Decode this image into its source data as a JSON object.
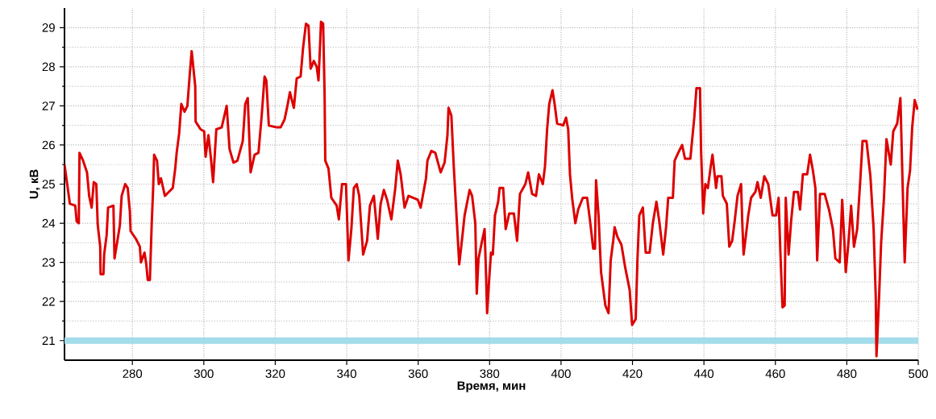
{
  "chart_data": {
    "type": "line",
    "xlabel": "Время, мин",
    "ylabel": "U, кВ",
    "xlim": [
      261,
      500
    ],
    "ylim": [
      20.5,
      29.5
    ],
    "xticks": [
      280,
      300,
      320,
      340,
      360,
      380,
      400,
      420,
      440,
      460,
      480,
      500
    ],
    "yticks": [
      21,
      {
        "value": 21.5,
        "label": null
      },
      22,
      {
        "value": 22.5,
        "label": null
      },
      23,
      {
        "value": 23.5,
        "label": null
      },
      24,
      {
        "value": 24.5,
        "label": null
      },
      25,
      {
        "value": 25.5,
        "label": null
      },
      26,
      {
        "value": 26.5,
        "label": null
      },
      27,
      {
        "value": 27.5,
        "label": null
      },
      28,
      {
        "value": 28.5,
        "label": null
      },
      29
    ],
    "grid": true,
    "marker": "none",
    "line_style": "solid",
    "ref_lines": [
      {
        "axis": "y",
        "value": 21,
        "color": "#a3dcea"
      }
    ],
    "series": [
      {
        "color": "#dd0000",
        "x": [
          261,
          262.5,
          264,
          264.4,
          265,
          265.2,
          266.2,
          267.3,
          267.9,
          268.6,
          269.2,
          269.9,
          270.3,
          271,
          271.1,
          271.9,
          272.1,
          272.8,
          273.2,
          274.7,
          275,
          275.8,
          276.5,
          277,
          278,
          278.7,
          279.3,
          279.5,
          281,
          282.1,
          282.4,
          283.4,
          283.9,
          284.3,
          284.9,
          285.4,
          285.8,
          286.1,
          286.9,
          287.4,
          288,
          289.1,
          290.2,
          291.3,
          292,
          292.4,
          293.1,
          293.7,
          294.6,
          295.4,
          296.1,
          296.6,
          297.6,
          297.7,
          299.1,
          300.1,
          300.5,
          301.3,
          302,
          302.6,
          303.5,
          305,
          306.4,
          307.2,
          308.3,
          309.4,
          310.9,
          311.6,
          312.3,
          313.1,
          314.2,
          315.3,
          316.2,
          317,
          317.5,
          318.2,
          320.4,
          321.5,
          322.6,
          323.4,
          324.1,
          325.2,
          326,
          327.1,
          327.8,
          328.6,
          329.3,
          329.9,
          330.8,
          331.6,
          332.1,
          332.5,
          332.8,
          333.4,
          333.8,
          334,
          334.9,
          335.7,
          337.2,
          337.8,
          338.7,
          339.8,
          340.5,
          341.3,
          342,
          342.8,
          343.5,
          344.6,
          345.7,
          346.5,
          347.6,
          348.7,
          349.5,
          350.4,
          351.3,
          352.5,
          353.6,
          354.3,
          355.1,
          356.2,
          357.3,
          359.9,
          360.7,
          362.2,
          362.6,
          363.7,
          364.8,
          366.3,
          367.4,
          368.2,
          368.5,
          369.3,
          370,
          370.8,
          371.5,
          372.3,
          373,
          374.4,
          375.1,
          376,
          376.4,
          376.9,
          377.9,
          378.6,
          379,
          379.3,
          379.9,
          380.4,
          380.9,
          381.5,
          382.4,
          382.8,
          383.8,
          384.5,
          385.5,
          386.8,
          387.7,
          388.5,
          390,
          390.8,
          391.9,
          393,
          393.8,
          394.9,
          395.5,
          396.1,
          396.7,
          397.6,
          398.2,
          398.9,
          400.6,
          401.4,
          402,
          402.5,
          403.1,
          404,
          404.8,
          406.1,
          407.3,
          408.2,
          409,
          409.5,
          409.8,
          410.5,
          411.2,
          412.4,
          413.3,
          413.9,
          414.6,
          415,
          415.8,
          416.9,
          418,
          419.2,
          419.9,
          420.9,
          421.4,
          421.9,
          422.9,
          423.7,
          424.8,
          425.7,
          426.7,
          427.5,
          428.6,
          429.4,
          430,
          431.3,
          431.8,
          432.8,
          433.9,
          434.7,
          436.2,
          437.3,
          437.9,
          438.9,
          439.2,
          439.8,
          440.4,
          441.1,
          441.9,
          442.4,
          443.4,
          443.8,
          444.9,
          445.3,
          446.4,
          447.1,
          447.9,
          448.6,
          449.4,
          450.4,
          450.7,
          451.1,
          451.7,
          452.4,
          453.2,
          454.4,
          455,
          455.9,
          456.9,
          458,
          459.2,
          460.2,
          460.9,
          461.4,
          462,
          462.6,
          462.9,
          463.7,
          464.4,
          465.2,
          466.3,
          466.9,
          467.7,
          468.9,
          469.7,
          470.5,
          471.2,
          471.7,
          472.5,
          473.8,
          475,
          476.1,
          476.8,
          478,
          478.7,
          479.3,
          479.7,
          480.5,
          481.2,
          482,
          482.9,
          483.8,
          484.4,
          485.5,
          486.6,
          487.5,
          488.1,
          488.3,
          489,
          489.6,
          490.4,
          491.1,
          492.3,
          493,
          494.1,
          495,
          495.6,
          496.2,
          497,
          497.7,
          498.3,
          499,
          499.8
        ],
        "values": [
          25.5,
          24.5,
          24.45,
          24.05,
          24.0,
          25.8,
          25.6,
          25.3,
          24.7,
          24.4,
          25.05,
          25.0,
          23.96,
          23.4,
          22.7,
          22.7,
          23.2,
          23.7,
          24.4,
          24.45,
          23.1,
          23.55,
          23.95,
          24.7,
          25.0,
          24.9,
          24.3,
          23.8,
          23.6,
          23.4,
          23.0,
          23.25,
          22.95,
          22.55,
          22.55,
          23.95,
          24.85,
          25.75,
          25.6,
          25.0,
          25.15,
          24.7,
          24.8,
          24.9,
          25.4,
          25.8,
          26.3,
          27.05,
          26.85,
          27.0,
          27.85,
          28.4,
          27.5,
          26.6,
          26.4,
          26.35,
          25.7,
          26.25,
          25.65,
          25.05,
          26.4,
          26.45,
          27.0,
          25.9,
          25.55,
          25.6,
          26.1,
          27.05,
          27.2,
          25.3,
          25.75,
          25.8,
          26.75,
          27.75,
          27.65,
          26.5,
          26.45,
          26.45,
          26.65,
          27.0,
          27.35,
          26.95,
          27.7,
          27.75,
          28.5,
          29.1,
          29.05,
          27.95,
          28.15,
          28.0,
          27.65,
          28.45,
          29.15,
          29.1,
          27.35,
          25.6,
          25.4,
          24.65,
          24.45,
          24.1,
          25.0,
          25.0,
          23.05,
          23.85,
          24.9,
          25.0,
          24.7,
          23.2,
          23.55,
          24.45,
          24.7,
          23.6,
          24.5,
          24.85,
          24.6,
          24.1,
          24.9,
          25.6,
          25.25,
          24.4,
          24.7,
          24.6,
          24.4,
          25.15,
          25.6,
          25.85,
          25.8,
          25.3,
          25.55,
          26.25,
          26.95,
          26.75,
          25.4,
          24.1,
          22.95,
          23.6,
          24.2,
          24.85,
          24.7,
          24.0,
          22.2,
          23.1,
          23.55,
          23.85,
          22.7,
          21.7,
          22.6,
          23.25,
          23.2,
          24.2,
          24.55,
          24.9,
          24.9,
          23.85,
          24.25,
          24.25,
          23.55,
          24.75,
          25.0,
          25.3,
          24.75,
          24.7,
          25.25,
          25.0,
          25.45,
          26.4,
          27.05,
          27.4,
          27.05,
          26.55,
          26.5,
          26.7,
          26.4,
          25.25,
          24.65,
          24.0,
          24.35,
          24.65,
          24.65,
          24.0,
          23.35,
          23.35,
          25.1,
          24.2,
          22.75,
          21.9,
          21.7,
          23.05,
          23.55,
          23.9,
          23.65,
          23.45,
          22.85,
          22.3,
          21.4,
          21.55,
          23.1,
          24.2,
          24.4,
          23.25,
          23.25,
          24.0,
          24.55,
          24.05,
          23.2,
          23.9,
          24.65,
          24.65,
          25.6,
          25.8,
          26.0,
          25.65,
          25.65,
          26.7,
          27.45,
          27.45,
          25.85,
          24.25,
          25.0,
          24.9,
          25.45,
          25.75,
          24.9,
          25.2,
          25.2,
          24.7,
          24.5,
          23.4,
          23.55,
          24.05,
          24.7,
          25.0,
          24.1,
          23.2,
          23.65,
          24.2,
          24.65,
          24.8,
          25.05,
          24.65,
          25.2,
          25.0,
          24.2,
          24.2,
          24.65,
          23.25,
          21.85,
          21.9,
          24.65,
          23.2,
          24.05,
          24.8,
          24.8,
          24.35,
          25.25,
          25.25,
          25.75,
          25.35,
          24.9,
          23.05,
          24.75,
          24.75,
          24.35,
          23.85,
          23.1,
          23.0,
          24.6,
          23.55,
          22.75,
          23.55,
          24.45,
          23.4,
          23.85,
          25.15,
          26.1,
          26.1,
          25.2,
          23.85,
          22.1,
          20.6,
          22.05,
          23.5,
          24.65,
          26.15,
          25.5,
          26.35,
          26.55,
          27.2,
          25.05,
          23.0,
          24.9,
          25.35,
          26.45,
          27.15,
          26.9
        ]
      }
    ]
  }
}
